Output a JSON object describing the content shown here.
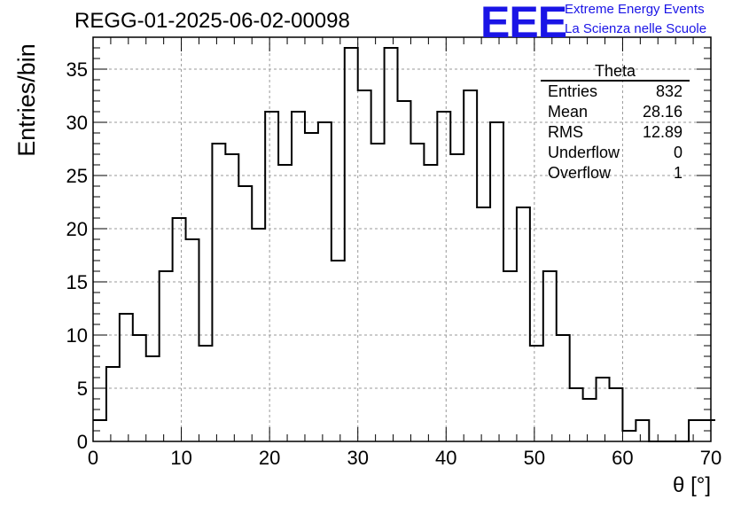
{
  "title": "REGG-01-2025-06-02-00098",
  "logo": {
    "mark": "EEE",
    "line1": "Extreme Energy Events",
    "line2": "La Scienza nelle Scuole",
    "color": "#1a14e6"
  },
  "stats": {
    "name": "Theta",
    "rows": [
      {
        "label": "Entries",
        "value": "832"
      },
      {
        "label": "Mean",
        "value": "28.16"
      },
      {
        "label": "RMS",
        "value": "12.89"
      },
      {
        "label": "Underflow",
        "value": "0"
      },
      {
        "label": "Overflow",
        "value": "1"
      }
    ]
  },
  "chart_data": {
    "type": "histogram",
    "xlabel": "θ [°]",
    "ylabel": "Entries/bin",
    "xlim": [
      0,
      70
    ],
    "ylim": [
      0,
      38
    ],
    "xticks": [
      0,
      10,
      20,
      30,
      40,
      50,
      60,
      70
    ],
    "yticks": [
      0,
      5,
      10,
      15,
      20,
      25,
      30,
      35
    ],
    "grid": true,
    "bin_width": 1.5,
    "bin_start": 0,
    "values": [
      2,
      7,
      12,
      10,
      8,
      16,
      21,
      19,
      9,
      28,
      27,
      24,
      20,
      31,
      26,
      31,
      29,
      30,
      17,
      37,
      33,
      28,
      37,
      32,
      28,
      26,
      31,
      27,
      33,
      22,
      30,
      16,
      22,
      9,
      16,
      10,
      5,
      4,
      6,
      5,
      1,
      2,
      0,
      0,
      0,
      2,
      2
    ]
  }
}
